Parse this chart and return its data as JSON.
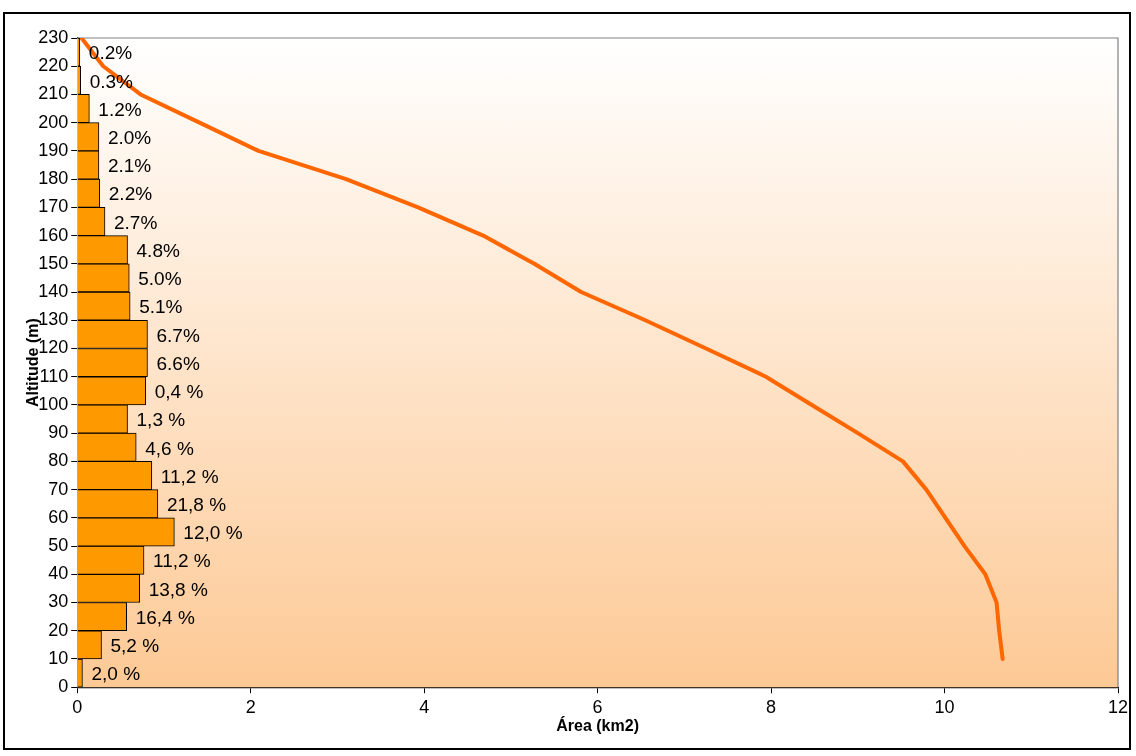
{
  "chart_data": {
    "type": "histogram",
    "orientation": "horizontal",
    "xlabel": "Área (km2)",
    "ylabel": "Altitude (m)",
    "bins": [
      0,
      10,
      20,
      30,
      40,
      50,
      60,
      70,
      80,
      90,
      100,
      110,
      120,
      130,
      140,
      150,
      160,
      170,
      180,
      190,
      200,
      210,
      220,
      230
    ],
    "series": [
      {
        "color": "#ff9900",
        "values": [
          0.06,
          0.28,
          0.57,
          0.72,
          0.77,
          1.12,
          0.93,
          0.86,
          0.68,
          0.58,
          0.79,
          0.81,
          0.81,
          0.61,
          0.6,
          0.58,
          0.32,
          0.26,
          0.25,
          0.25,
          0.14,
          0.04,
          0.03
        ]
      },
      {
        "type": "line",
        "color": "#ff6600",
        "x": [
          10,
          20,
          30,
          40,
          50,
          60,
          70,
          80,
          90,
          100,
          110,
          120,
          130,
          140,
          150,
          160,
          170,
          180,
          190,
          200,
          210,
          220,
          230
        ],
        "values": [
          10.67,
          10.63,
          10.6,
          10.47,
          10.23,
          10.01,
          9.79,
          9.52,
          9.0,
          8.47,
          7.94,
          7.25,
          6.55,
          5.81,
          5.27,
          4.68,
          3.93,
          3.1,
          2.09,
          1.41,
          0.73,
          0.3,
          0.05
        ]
      }
    ],
    "annotations": [
      {
        "text": "2,0 %",
        "x": 0.06,
        "y": 5
      },
      {
        "text": "5,2 %",
        "x": 0.28,
        "y": 15
      },
      {
        "text": "16,4 %",
        "x": 0.57,
        "y": 25
      },
      {
        "text": "13,8 %",
        "x": 0.72,
        "y": 35
      },
      {
        "text": "11,2 %",
        "x": 0.77,
        "y": 45
      },
      {
        "text": "12,0 %",
        "x": 1.12,
        "y": 55
      },
      {
        "text": "21,8 %",
        "x": 0.93,
        "y": 65
      },
      {
        "text": "11,2 %",
        "x": 0.86,
        "y": 75
      },
      {
        "text": "4,6 %",
        "x": 0.68,
        "y": 85
      },
      {
        "text": "1,3 %",
        "x": 0.58,
        "y": 95
      },
      {
        "text": "0,4 %",
        "x": 0.79,
        "y": 105
      },
      {
        "text": "6.6%",
        "x": 0.81,
        "y": 115
      },
      {
        "text": "6.7%",
        "x": 0.81,
        "y": 125
      },
      {
        "text": "5.1%",
        "x": 0.61,
        "y": 135
      },
      {
        "text": "5.0%",
        "x": 0.6,
        "y": 145
      },
      {
        "text": "4.8%",
        "x": 0.58,
        "y": 155
      },
      {
        "text": "2.7%",
        "x": 0.32,
        "y": 165
      },
      {
        "text": "2.2%",
        "x": 0.26,
        "y": 175
      },
      {
        "text": "2.1%",
        "x": 0.25,
        "y": 185
      },
      {
        "text": "2.0%",
        "x": 0.25,
        "y": 195
      },
      {
        "text": "1.2%",
        "x": 0.14,
        "y": 205
      },
      {
        "text": "0.3%",
        "x": 0.04,
        "y": 215
      },
      {
        "text": "0.2%",
        "x": 0.03,
        "y": 225
      }
    ],
    "xlim": [
      0,
      12
    ],
    "xticks": [
      0,
      2,
      4,
      6,
      8,
      10,
      12
    ],
    "ylim": [
      0,
      230
    ],
    "yticks": [
      0,
      10,
      20,
      30,
      40,
      50,
      60,
      70,
      80,
      90,
      100,
      110,
      120,
      130,
      140,
      150,
      160,
      170,
      180,
      190,
      200,
      210,
      220,
      230
    ]
  }
}
